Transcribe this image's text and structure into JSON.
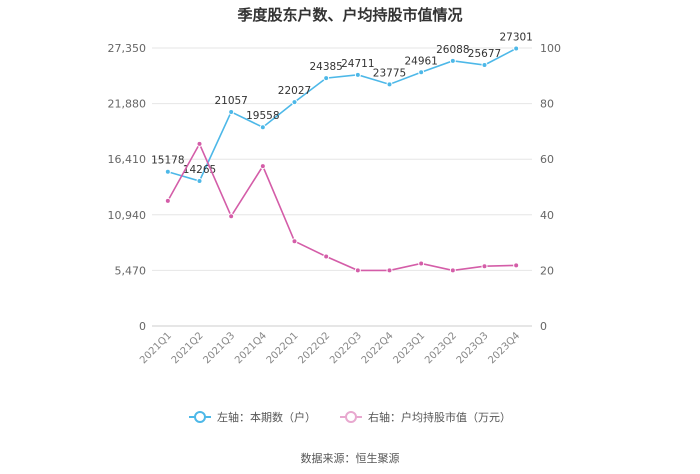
{
  "chart_data": {
    "type": "line",
    "title": "季度股东户数、户均持股市值情况",
    "categories": [
      "2021Q1",
      "2021Q2",
      "2021Q3",
      "2021Q4",
      "2022Q1",
      "2022Q2",
      "2022Q3",
      "2022Q4",
      "2023Q1",
      "2023Q2",
      "2023Q3",
      "2023Q4"
    ],
    "left_axis": {
      "ticks": [
        "0",
        "5,470",
        "10,940",
        "16,410",
        "21,880",
        "27,350"
      ],
      "min": 0,
      "max": 27350
    },
    "right_axis": {
      "ticks": [
        "0",
        "20",
        "40",
        "60",
        "80",
        "100"
      ],
      "min": 0,
      "max": 100
    },
    "grid": true,
    "legend_position": "bottom",
    "series": [
      {
        "name": "左轴：本期数（户）",
        "axis": "left",
        "color": "#4db8e8",
        "values": [
          15178,
          14265,
          21057,
          19558,
          22027,
          24385,
          24711,
          23775,
          24961,
          26088,
          25677,
          27301
        ],
        "labels": [
          "15178",
          "14265",
          "21057",
          "19558",
          "22027",
          "24385",
          "24711",
          "23775",
          "24961",
          "26088",
          "25677",
          "27301"
        ]
      },
      {
        "name": "右轴：户均持股市值（万元）",
        "axis": "right",
        "color": "#d45da8",
        "values": [
          45.0,
          65.5,
          39.5,
          57.5,
          30.5,
          25.0,
          20.0,
          20.0,
          22.5,
          20.0,
          21.5,
          21.8
        ]
      }
    ]
  },
  "source": "数据来源：恒生聚源"
}
